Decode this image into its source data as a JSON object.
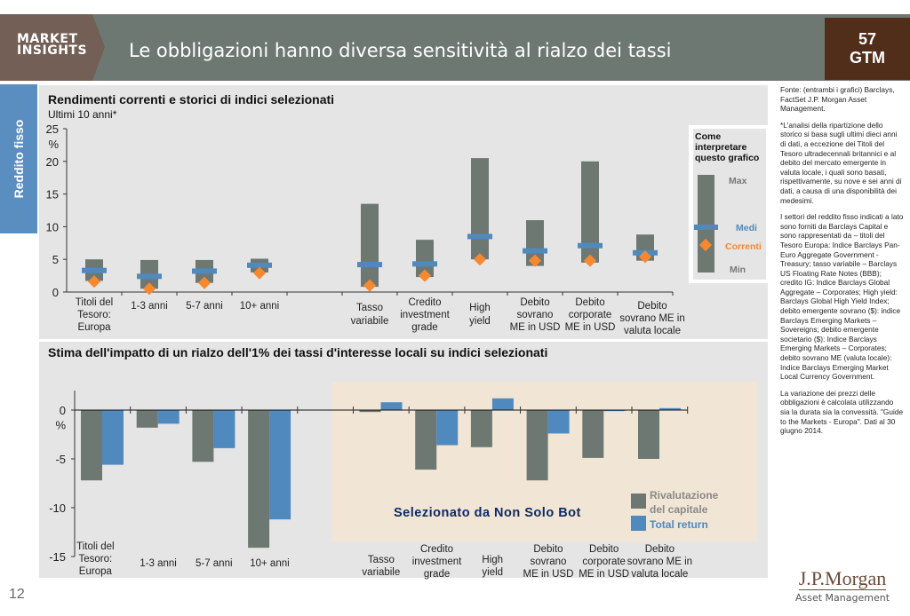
{
  "header": {
    "brand_line1": "MARKET",
    "brand_line2": "INSIGHTS",
    "title": "Le obbligazioni hanno diversa sensitività al rialzo dei tassi",
    "badge_line1": "57",
    "badge_line2": "GTM"
  },
  "side_tab": "Reddito fisso",
  "page_number": "12",
  "logo": {
    "line1": "J.P.Morgan",
    "line2": "Asset Management"
  },
  "colors": {
    "bar_range": "#6e7873",
    "average": "#5089bd",
    "current": "#f7882f",
    "total_return": "#5089bd",
    "highlight_bg": "#f1e5d5",
    "watermark": "#0d2b63"
  },
  "notes": [
    "Fonte: (entrambi i grafici) Barclays, FactSet J.P. Morgan Asset Management.",
    "*L'analisi della ripartizione dello storico si basa sugli ultimi dieci anni di dati, a eccezione dei Titoli del Tesoro ultradecennali britannici e al debito del mercato emergente in valuta locale, i quali sono basati, rispettivamente, su nove e sei anni di dati, a causa di una disponibilità dei medesimi.",
    "I settori del reddito fisso indicati a lato sono forniti da Barclays Capital e sono rappresentati da – titoli del Tesoro Europa: Indice Barclays Pan-Euro Aggregate Government - Treasury; tasso variabile – Barclays US Floating Rate Notes (BBB); credito IG: Indice Barclays Global Aggregate – Corporates; High yield: Barclays Global High Yield Index; debito emergente sovrano ($): indice Barclays Emerging Markets – Sovereigns; debito emergente societario ($): Indice Barclays Emerging Markets – Corporates; debito sovrano ME (valuta locale): Indice Barclays Emerging Market Local Currency Government.",
    "La variazione dei prezzi delle obbligazioni è calcolata utilizzando sia la durata sia la convessità. \"Guide to the Markets - Europa\". Dati al 30 giugno 2014."
  ],
  "chart_data": [
    {
      "type": "range",
      "title": "Rendimenti correnti e storici di indici selezionati",
      "subtitle": "Ultimi 10 anni*",
      "ylabel": "%",
      "ylim": [
        0,
        25
      ],
      "yticks": [
        "0",
        "5",
        "10",
        "15",
        "20",
        "25"
      ],
      "categories": [
        [
          "Titoli del",
          "Tesoro:",
          "Europa"
        ],
        [
          "1-3 anni"
        ],
        [
          "5-7 anni"
        ],
        [
          "10+ anni"
        ],
        [
          "Tasso",
          "variabile"
        ],
        [
          "Credito",
          "investment",
          "grade"
        ],
        [
          "High",
          "yield"
        ],
        [
          "Debito",
          "sovrano",
          "ME in USD"
        ],
        [
          "Debito",
          "corporate",
          "ME in USD"
        ],
        [
          "Debito",
          "sovrano ME in",
          "valuta locale"
        ]
      ],
      "max": [
        5.0,
        4.9,
        4.9,
        5.1,
        13.5,
        8.0,
        20.5,
        11.0,
        20.0,
        8.8
      ],
      "min": [
        1.7,
        0.5,
        1.4,
        3.0,
        0.8,
        2.3,
        5.0,
        4.0,
        4.5,
        4.8
      ],
      "average": [
        3.3,
        2.4,
        3.2,
        4.1,
        4.2,
        4.3,
        8.5,
        6.3,
        7.1,
        6.0
      ],
      "current": [
        1.6,
        0.5,
        1.4,
        2.9,
        1.0,
        2.5,
        5.0,
        4.8,
        4.8,
        5.4
      ],
      "legend": {
        "title_lines": [
          "Come",
          "interpretare",
          "questo grafico"
        ],
        "max": "Max",
        "average": "Medi",
        "current": "Correnti",
        "min": "Min"
      }
    },
    {
      "type": "bar",
      "title": "Stima dell'impatto di un rialzo dell'1% dei tassi d'interesse locali su indici selezionati",
      "ylabel": "%",
      "ylim": [
        -15,
        2
      ],
      "yticks": [
        "0",
        "-5",
        "-10",
        "-15"
      ],
      "categories": [
        [
          "Titoli del",
          "Tesoro:",
          "Europa"
        ],
        [
          "1-3 anni"
        ],
        [
          "5-7 anni"
        ],
        [
          "10+ anni"
        ],
        [
          "Tasso",
          "variabile"
        ],
        [
          "Credito",
          "investment",
          "grade"
        ],
        [
          "High",
          "yield"
        ],
        [
          "Debito",
          "sovrano",
          "ME in USD"
        ],
        [
          "Debito",
          "corporate",
          "ME in USD"
        ],
        [
          "Debito",
          "sovrano ME in",
          "valuta locale"
        ]
      ],
      "series": [
        {
          "name": "Rivalutazione del capitale",
          "name_lines": [
            "Rivalutazione",
            "del capitale"
          ],
          "values": [
            -7.2,
            -1.8,
            -5.3,
            -14.1,
            -0.2,
            -6.1,
            -3.8,
            -7.2,
            -4.9,
            -5.0
          ]
        },
        {
          "name": "Total return",
          "name_lines": [
            "Total return"
          ],
          "values": [
            -5.6,
            -1.4,
            -3.9,
            -11.2,
            0.8,
            -3.6,
            1.2,
            -2.4,
            -0.1,
            0.2
          ]
        }
      ],
      "annotation": "Selezionato da Non Solo Bot"
    }
  ]
}
